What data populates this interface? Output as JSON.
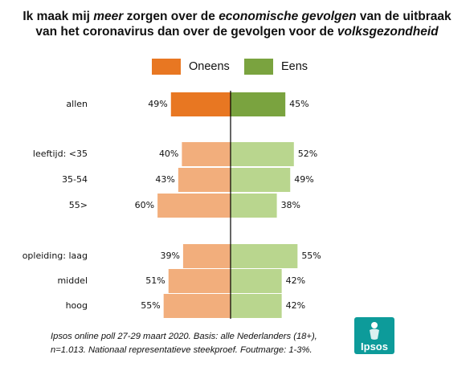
{
  "title": {
    "line1": [
      "Ik maak mij ",
      "meer",
      " zorgen over de ",
      "economische gevolgen",
      " van de uitbraak"
    ],
    "line2": [
      "van het coronavirus dan over de gevolgen voor de ",
      "volksgezondheid"
    ]
  },
  "legend": [
    {
      "label": "Oneens",
      "color": "#e87722"
    },
    {
      "label": "Eens",
      "color": "#7aa33f"
    }
  ],
  "colors": {
    "oneens_total": "#e87722",
    "eens_total": "#7aa33f",
    "oneens": "#f2ae7c",
    "eens": "#b9d68e",
    "axis": "#000000",
    "logo": "#0d9b9a"
  },
  "chart_data": {
    "type": "bar",
    "orientation": "horizontal-diverging",
    "categories": [
      "allen",
      "leeftijd: <35",
      "35-54",
      "55>",
      "opleiding: laag",
      "middel",
      "hoog"
    ],
    "groups": [
      [
        "allen"
      ],
      [
        "leeftijd: <35",
        "35-54",
        "55>"
      ],
      [
        "opleiding: laag",
        "middel",
        "hoog"
      ]
    ],
    "series": [
      {
        "name": "Oneens",
        "values": [
          49,
          40,
          43,
          60,
          39,
          51,
          55
        ]
      },
      {
        "name": "Eens",
        "values": [
          45,
          52,
          49,
          38,
          55,
          42,
          42
        ]
      }
    ],
    "value_labels": {
      "Oneens": [
        "49%",
        "40%",
        "43%",
        "60%",
        "39%",
        "51%",
        "55%"
      ],
      "Eens": [
        "45%",
        "52%",
        "49%",
        "38%",
        "55%",
        "42%",
        "42%"
      ]
    },
    "legend_position": "top",
    "grid": false
  },
  "footnote": {
    "line1": "Ipsos online poll 27-29 maart 2020. Basis: alle Nederlanders (18+),",
    "line2": "n=1.013. Nationaal representatieve steekproef. Foutmarge: 1-3%."
  },
  "logo": {
    "text": "Ipsos"
  }
}
